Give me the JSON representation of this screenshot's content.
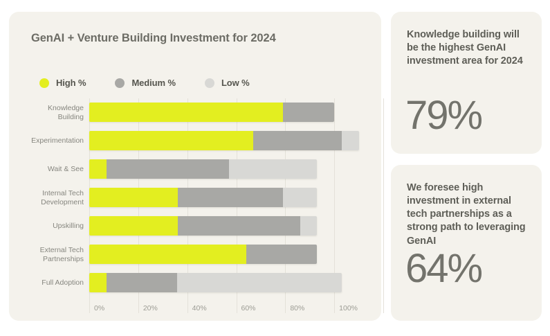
{
  "page": {
    "background": "#ffffff",
    "card_background": "#f4f2ec"
  },
  "main_card": {
    "title": "GenAI + Venture Building Investment for 2024"
  },
  "legend": [
    {
      "label": "High %",
      "color": "#e3ee20"
    },
    {
      "label": "Medium %",
      "color": "#a8a8a5"
    },
    {
      "label": "Low %",
      "color": "#d8d8d5"
    }
  ],
  "chart_data": {
    "type": "bar",
    "orientation": "horizontal",
    "stacked": true,
    "title": "GenAI + Venture Building Investment for 2024",
    "categories": [
      "Knowledge Building",
      "Experimentation",
      "Wait & See",
      "Internal Tech Development",
      "Upskilling",
      "External Tech Partnerships",
      "Full Adoption"
    ],
    "series": [
      {
        "name": "High %",
        "color": "#e3ee20",
        "values": [
          79,
          67,
          7,
          36,
          36,
          64,
          7
        ]
      },
      {
        "name": "Medium %",
        "color": "#a8a8a5",
        "values": [
          21,
          36,
          50,
          43,
          50,
          29,
          29
        ]
      },
      {
        "name": "Low %",
        "color": "#d8d8d5",
        "values": [
          0,
          7,
          36,
          14,
          7,
          0,
          67
        ]
      }
    ],
    "x_ticks": [
      "0%",
      "20%",
      "40%",
      "60%",
      "80%",
      "100%"
    ],
    "xlim": [
      0,
      120
    ],
    "grid": "vertical",
    "legend_position": "top-left"
  },
  "stat_cards": [
    {
      "text": "Knowledge building will be the highest GenAI investment area for 2024",
      "value": "79%"
    },
    {
      "text": "We foresee high investment in external tech partnerships as a strong path to leveraging GenAI",
      "value": "64%"
    }
  ]
}
